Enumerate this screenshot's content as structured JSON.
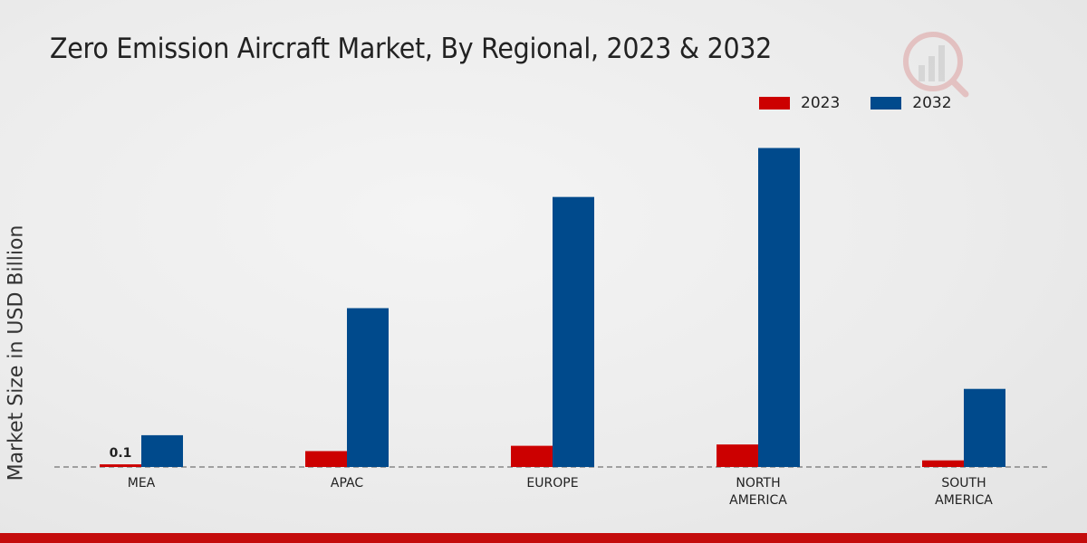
{
  "title": "Zero Emission Aircraft Market, By Regional, 2023 & 2032",
  "ylabel": "Market Size in USD Billion",
  "colors": {
    "2023": "#cc0000",
    "2032": "#004a8c"
  },
  "chart_data": {
    "type": "bar",
    "title": "Zero Emission Aircraft Market, By Regional, 2023 & 2032",
    "xlabel": "",
    "ylabel": "Market Size in USD Billion",
    "categories": [
      "MEA",
      "APAC",
      "EUROPE",
      "NORTH AMERICA",
      "SOUTH AMERICA"
    ],
    "category_lines": [
      [
        "MEA"
      ],
      [
        "APAC"
      ],
      [
        "EUROPE"
      ],
      [
        "NORTH",
        "AMERICA"
      ],
      [
        "SOUTH",
        "AMERICA"
      ]
    ],
    "series": [
      {
        "name": "2023",
        "values": [
          0.1,
          0.6,
          0.8,
          0.85,
          0.25
        ]
      },
      {
        "name": "2032",
        "values": [
          1.2,
          6.0,
          10.2,
          12.05,
          2.95
        ]
      }
    ],
    "data_labels": [
      {
        "series": 0,
        "index": 0,
        "text": "0.1"
      }
    ],
    "ylim": [
      0,
      16
    ],
    "legend_position": "top-right",
    "grid": false
  }
}
